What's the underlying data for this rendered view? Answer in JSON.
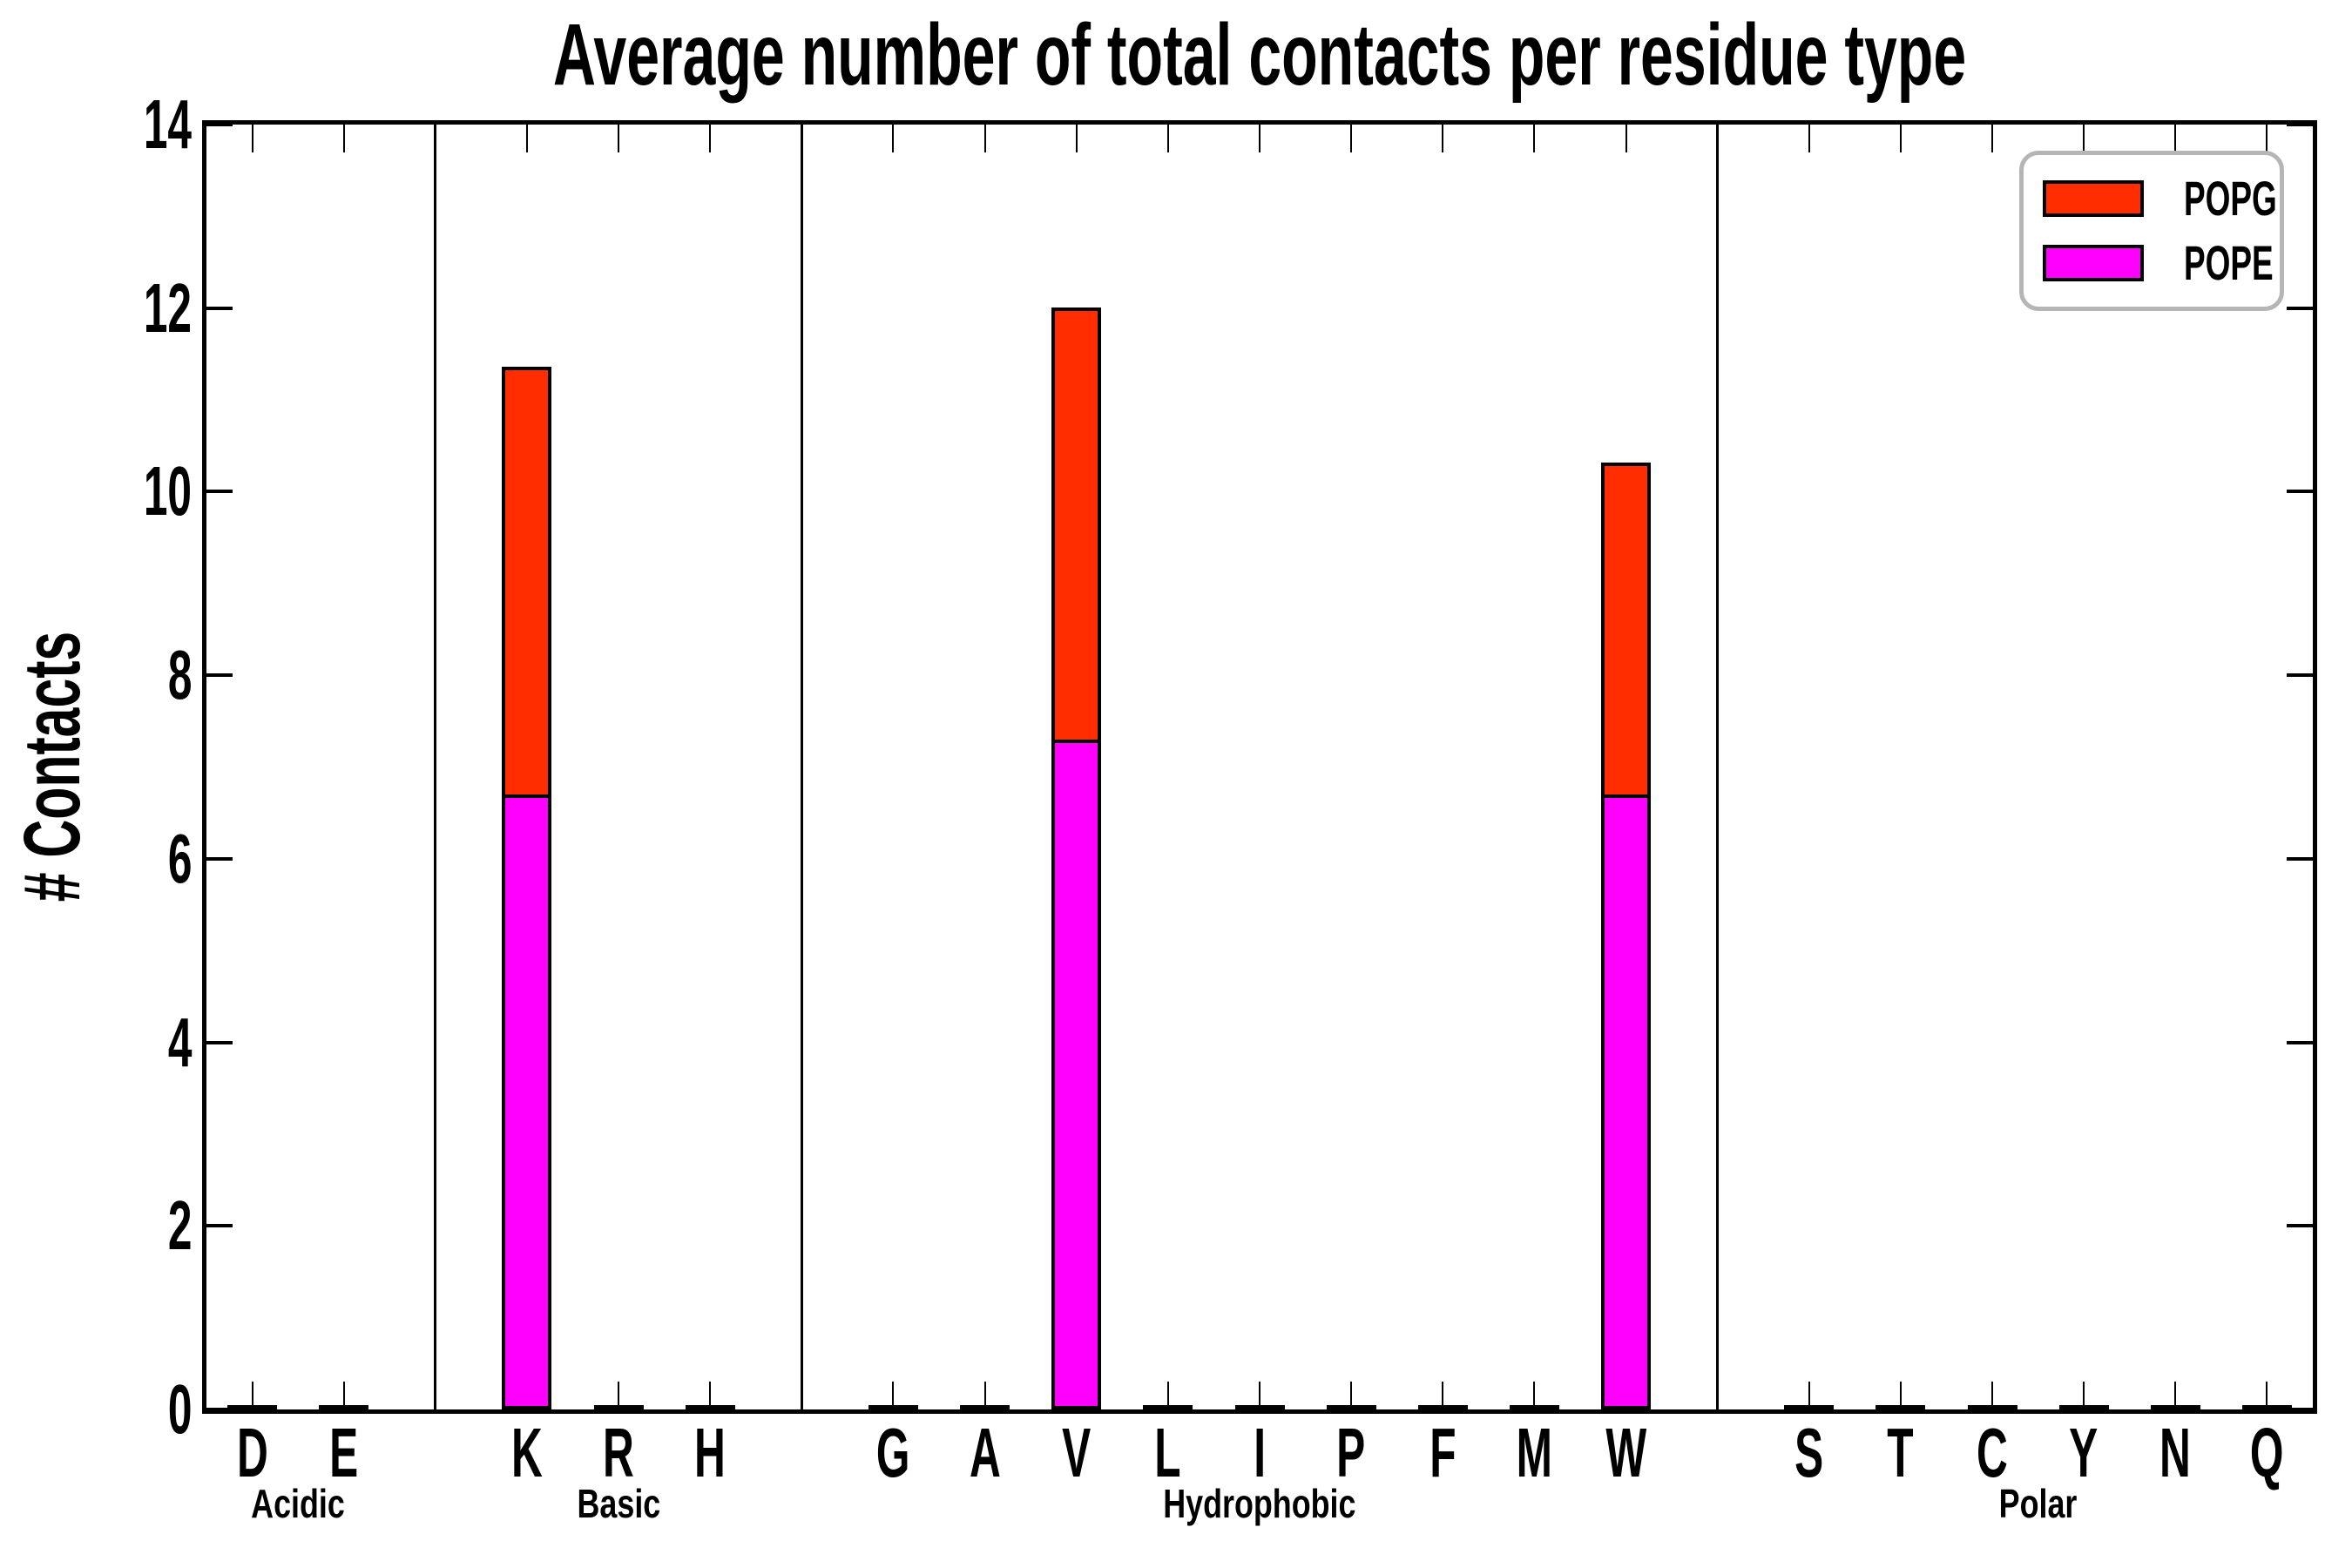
{
  "chart_data": {
    "type": "bar",
    "stacked": true,
    "title": "Average number of total contacts per residue type",
    "ylabel": "# Contacts",
    "xlabel": "",
    "ylim": [
      0,
      14
    ],
    "yticks": [
      0,
      2,
      4,
      6,
      8,
      10,
      12,
      14
    ],
    "grid": false,
    "legend_position": "upper right",
    "legend": [
      {
        "label": "POPG",
        "color": "#ff2d00"
      },
      {
        "label": "POPE",
        "color": "#ff00ff"
      }
    ],
    "categories": [
      "D",
      "E",
      "K",
      "R",
      "H",
      "G",
      "A",
      "V",
      "L",
      "I",
      "P",
      "F",
      "M",
      "W",
      "S",
      "T",
      "C",
      "Y",
      "N",
      "Q"
    ],
    "category_units": [
      0.5,
      1.5,
      3.5,
      4.5,
      5.5,
      7.5,
      8.5,
      9.5,
      10.5,
      11.5,
      12.5,
      13.5,
      14.5,
      15.5,
      17.5,
      18.5,
      19.5,
      20.5,
      21.5,
      22.5
    ],
    "x_units_total": 23,
    "separator_units": [
      2.5,
      6.5,
      16.5
    ],
    "groups": [
      {
        "label": "Acidic",
        "unit": 1.0
      },
      {
        "label": "Basic",
        "unit": 4.5
      },
      {
        "label": "Hydrophobic",
        "unit": 11.5
      },
      {
        "label": "Polar",
        "unit": 20.0
      }
    ],
    "series": [
      {
        "name": "POPE",
        "color": "#ff00ff",
        "values": [
          0.03,
          0.03,
          6.7,
          0.03,
          0.03,
          0.03,
          0.03,
          7.3,
          0.03,
          0.03,
          0.03,
          0.03,
          0.03,
          6.7,
          0.03,
          0.03,
          0.03,
          0.03,
          0.03,
          0.03
        ]
      },
      {
        "name": "POPG",
        "color": "#ff2d00",
        "values": [
          0.03,
          0.03,
          4.7,
          0.03,
          0.03,
          0.03,
          0.03,
          4.75,
          0.03,
          0.03,
          0.03,
          0.03,
          0.03,
          3.65,
          0.03,
          0.03,
          0.03,
          0.03,
          0.03,
          0.03
        ]
      }
    ]
  }
}
